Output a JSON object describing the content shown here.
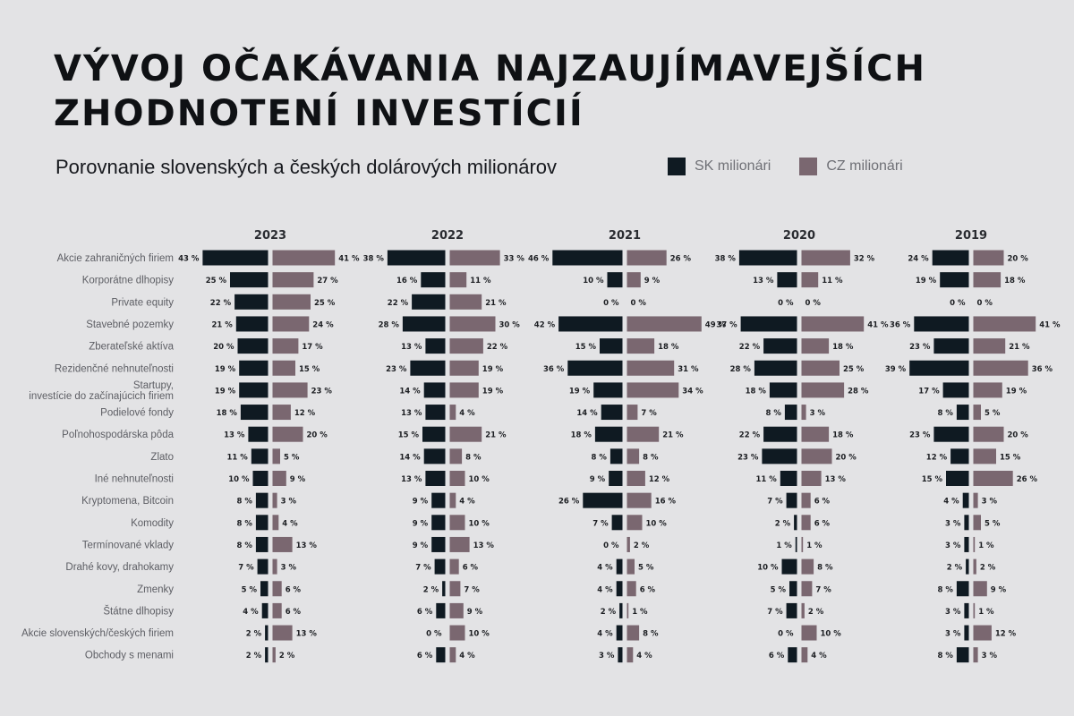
{
  "title_line1": "VÝVOJ OČAKÁVANIA NAJZAUJÍMAVEJŠÍCH",
  "title_line2": "ZHODNOTENÍ INVESTÍCIÍ",
  "subtitle": "Porovnanie slovenských a českých dolárových milionárov",
  "legend": [
    {
      "label": "SK milionári",
      "color": "#0f1a22"
    },
    {
      "label": "CZ milionári",
      "color": "#7a6770"
    }
  ],
  "chart_data": {
    "type": "bar",
    "orientation": "horizontal-back-to-back",
    "value_suffix": " %",
    "categories": [
      "Akcie zahraničných firiem",
      "Korporátne dlhopisy",
      "Private equity",
      "Stavebné pozemky",
      "Zberateľské aktíva",
      "Rezidenčné nehnuteľnosti",
      "Startupy,\ninvestície do začínajúcich firiem",
      "Podielové fondy",
      "Poľnohospodárska pôda",
      "Zlato",
      "Iné nehnuteľnosti",
      "Kryptomena, Bitcoin",
      "Komodity",
      "Termínované vklady",
      "Drahé kovy, drahokamy",
      "Zmenky",
      "Štátne dlhopisy",
      "Akcie slovenských/českých firiem",
      "Obchody s menami"
    ],
    "panels": [
      {
        "year": "2023",
        "sk": [
          43,
          25,
          22,
          21,
          20,
          19,
          19,
          18,
          13,
          11,
          10,
          8,
          8,
          8,
          7,
          5,
          4,
          2,
          2
        ],
        "cz": [
          41,
          27,
          25,
          24,
          17,
          15,
          23,
          12,
          20,
          5,
          9,
          3,
          4,
          13,
          3,
          6,
          6,
          13,
          2
        ]
      },
      {
        "year": "2022",
        "sk": [
          38,
          16,
          22,
          28,
          13,
          23,
          14,
          13,
          15,
          14,
          13,
          9,
          9,
          9,
          7,
          2,
          6,
          0,
          6
        ],
        "cz": [
          33,
          11,
          21,
          30,
          22,
          19,
          19,
          4,
          21,
          8,
          10,
          4,
          10,
          13,
          6,
          7,
          9,
          10,
          4
        ]
      },
      {
        "year": "2021",
        "sk": [
          46,
          10,
          0,
          42,
          15,
          36,
          19,
          14,
          18,
          8,
          9,
          26,
          7,
          0,
          4,
          4,
          2,
          4,
          3
        ],
        "cz": [
          26,
          9,
          0,
          49,
          18,
          31,
          34,
          7,
          21,
          8,
          12,
          16,
          10,
          2,
          5,
          6,
          1,
          8,
          4
        ]
      },
      {
        "year": "2020",
        "sk": [
          38,
          13,
          0,
          37,
          22,
          28,
          18,
          8,
          22,
          23,
          11,
          7,
          2,
          1,
          10,
          5,
          7,
          0,
          6
        ],
        "cz": [
          32,
          11,
          0,
          41,
          18,
          25,
          28,
          3,
          18,
          20,
          13,
          6,
          6,
          1,
          8,
          7,
          2,
          10,
          4
        ]
      },
      {
        "year": "2019",
        "sk": [
          24,
          19,
          0,
          36,
          23,
          39,
          17,
          8,
          23,
          12,
          15,
          4,
          3,
          3,
          2,
          8,
          3,
          3,
          8
        ],
        "cz": [
          20,
          18,
          0,
          41,
          21,
          36,
          19,
          5,
          20,
          15,
          26,
          3,
          5,
          1,
          2,
          9,
          1,
          12,
          3
        ]
      }
    ]
  }
}
